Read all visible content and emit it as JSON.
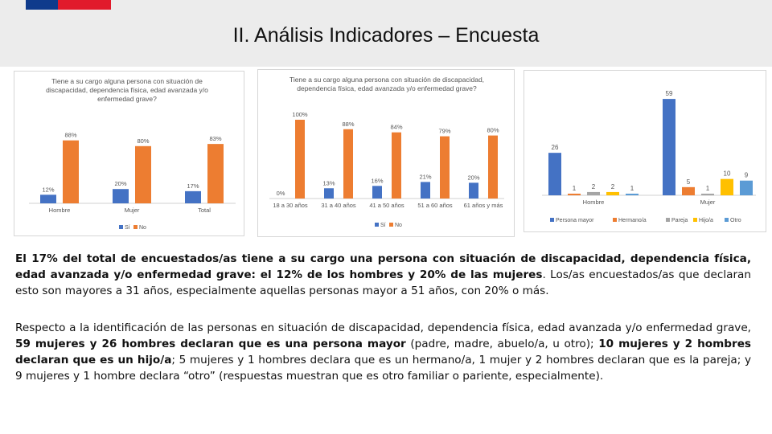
{
  "header": {
    "title": "II. Análisis Indicadores – Encuesta"
  },
  "colors": {
    "si": "#4472c4",
    "no": "#ed7d31",
    "pareja": "#a5a5a5",
    "hijo": "#ffc000",
    "otro": "#5b9bd5"
  },
  "chart_data": [
    {
      "type": "bar",
      "title_lines": [
        "Tiene a su cargo alguna persona con situación de",
        "discapacidad, dependencia física, edad avanzada y/o",
        "enfermedad grave?"
      ],
      "categories": [
        "Hombre",
        "Mujer",
        "Total"
      ],
      "series": [
        {
          "name": "Sí",
          "values": [
            12,
            20,
            17
          ]
        },
        {
          "name": "No",
          "values": [
            88,
            80,
            83
          ]
        }
      ],
      "value_labels": [
        [
          "12%",
          "20%",
          "17%"
        ],
        [
          "88%",
          "80%",
          "83%"
        ]
      ],
      "legend": [
        "Sí",
        "No"
      ],
      "ylim": [
        0,
        100
      ]
    },
    {
      "type": "bar",
      "title_lines": [
        "Tiene a su cargo alguna persona con situación de discapacidad,",
        "dependencia física, edad avanzada y/o enfermedad grave?"
      ],
      "categories": [
        "18 a 30 años",
        "31 a 40 años",
        "41 a 50 años",
        "51 a 60 años",
        "61 años y más"
      ],
      "series": [
        {
          "name": "Sí",
          "values": [
            0,
            13,
            16,
            21,
            20
          ]
        },
        {
          "name": "No",
          "values": [
            100,
            88,
            84,
            79,
            80
          ]
        }
      ],
      "value_labels": [
        [
          "0%",
          "13%",
          "16%",
          "21%",
          "20%"
        ],
        [
          "100%",
          "88%",
          "84%",
          "79%",
          "80%"
        ]
      ],
      "legend": [
        "Sí",
        "No"
      ],
      "ylim": [
        0,
        100
      ]
    },
    {
      "type": "bar",
      "categories": [
        "Hombre",
        "Mujer"
      ],
      "series": [
        {
          "name": "Persona mayor",
          "values": [
            26,
            59
          ]
        },
        {
          "name": "Hermano/a",
          "values": [
            1,
            5
          ]
        },
        {
          "name": "Pareja",
          "values": [
            2,
            1
          ]
        },
        {
          "name": "Hijo/a",
          "values": [
            2,
            10
          ]
        },
        {
          "name": "Otro",
          "values": [
            1,
            9
          ]
        }
      ],
      "legend": [
        "Persona mayor",
        "Hermano/a",
        "Pareja",
        "Hijo/a",
        "Otro"
      ],
      "ylim": [
        0,
        62
      ]
    }
  ],
  "paragraphs": {
    "p1": [
      {
        "text": "El 17% del total de encuestados/as tiene a su cargo una persona con situación de discapacidad, dependencia física, edad avanzada y/o enfermedad grave: el 12% de los hombres y 20% de las mujeres",
        "bold": true
      },
      {
        "text": ". Los/as encuestados/as que declaran esto son mayores a 31 años, especialmente aquellas personas mayor a 51 años, con 20% o más.",
        "bold": false
      }
    ],
    "p2": [
      {
        "text": "Respecto a la identificación de las personas en situación de discapacidad, dependencia física, edad avanzada y/o enfermedad grave, ",
        "bold": false
      },
      {
        "text": "59 mujeres y 26 hombres declaran que es una persona mayor",
        "bold": true
      },
      {
        "text": " (padre, madre, abuelo/a, u otro); ",
        "bold": false
      },
      {
        "text": "10 mujeres y 2 hombres declaran que es un hijo/a",
        "bold": true
      },
      {
        "text": "; 5 mujeres y 1 hombres declara que es un hermano/a, 1 mujer y 2 hombres declaran que es la pareja; y 9 mujeres y 1 hombre declara “otro” (respuestas muestran que es otro familiar o pariente, especialmente).",
        "bold": false
      }
    ]
  }
}
